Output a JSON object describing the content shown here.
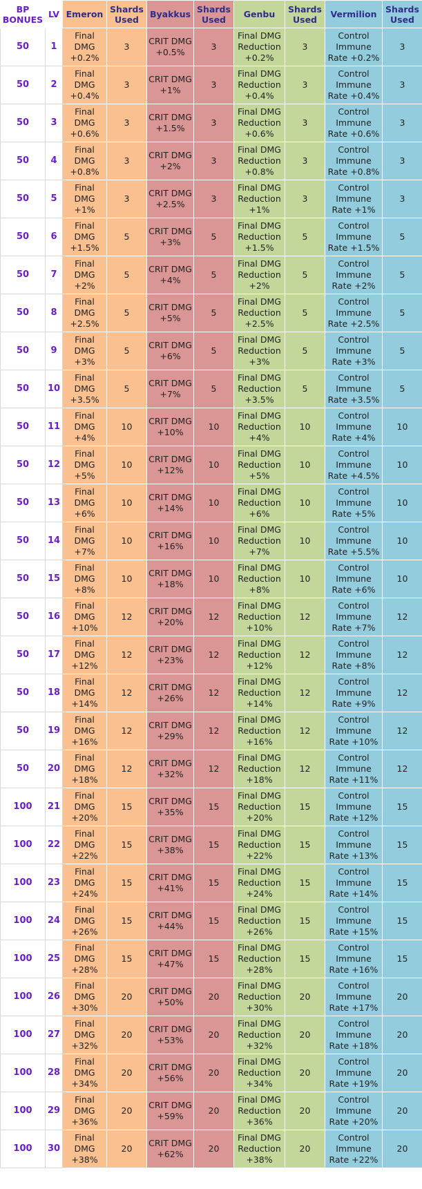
{
  "headers": [
    "BP BONUES",
    "LV",
    "Emeron",
    "Shards Used",
    "Byakkus",
    "Shards Used",
    "Genbu",
    "Shards Used",
    "Vermilion",
    "Shards Used"
  ],
  "colors": {
    "emeron": "#fac090",
    "byakkus": "#d99694",
    "genbu": "#c4d79b",
    "vermilion": "#93cddd",
    "accent_purple": "#6a1fc9",
    "header_text": "#2e2e8a"
  },
  "rows": [
    {
      "bp": "50",
      "lv": "1",
      "emeron": "Final DMG +0.2%",
      "s1": "3",
      "byakkus": "CRIT DMG +0.5%",
      "s2": "3",
      "genbu": "Final DMG Reduction +0.2%",
      "s3": "3",
      "vermilion": "Control Immune Rate +0.2%",
      "s4": "3"
    },
    {
      "bp": "50",
      "lv": "2",
      "emeron": "Final DMG +0.4%",
      "s1": "3",
      "byakkus": "CRIT DMG +1%",
      "s2": "3",
      "genbu": "Final DMG Reduction +0.4%",
      "s3": "3",
      "vermilion": "Control Immune Rate +0.4%",
      "s4": "3"
    },
    {
      "bp": "50",
      "lv": "3",
      "emeron": "Final DMG +0.6%",
      "s1": "3",
      "byakkus": "CRIT DMG +1.5%",
      "s2": "3",
      "genbu": "Final DMG Reduction +0.6%",
      "s3": "3",
      "vermilion": "Control Immune Rate +0.6%",
      "s4": "3"
    },
    {
      "bp": "50",
      "lv": "4",
      "emeron": "Final DMG +0.8%",
      "s1": "3",
      "byakkus": "CRIT DMG +2%",
      "s2": "3",
      "genbu": "Final DMG Reduction +0.8%",
      "s3": "3",
      "vermilion": "Control Immune Rate +0.8%",
      "s4": "3"
    },
    {
      "bp": "50",
      "lv": "5",
      "emeron": "Final DMG +1%",
      "s1": "3",
      "byakkus": "CRIT DMG +2.5%",
      "s2": "3",
      "genbu": "Final DMG Reduction +1%",
      "s3": "3",
      "vermilion": "Control Immune Rate +1%",
      "s4": "3"
    },
    {
      "bp": "50",
      "lv": "6",
      "emeron": "Final DMG +1.5%",
      "s1": "5",
      "byakkus": "CRIT DMG +3%",
      "s2": "5",
      "genbu": "Final DMG Reduction +1.5%",
      "s3": "5",
      "vermilion": "Control Immune Rate +1.5%",
      "s4": "5"
    },
    {
      "bp": "50",
      "lv": "7",
      "emeron": "Final DMG +2%",
      "s1": "5",
      "byakkus": "CRIT DMG +4%",
      "s2": "5",
      "genbu": "Final DMG Reduction +2%",
      "s3": "5",
      "vermilion": "Control Immune Rate +2%",
      "s4": "5"
    },
    {
      "bp": "50",
      "lv": "8",
      "emeron": "Final DMG +2.5%",
      "s1": "5",
      "byakkus": "CRIT DMG +5%",
      "s2": "5",
      "genbu": "Final DMG Reduction +2.5%",
      "s3": "5",
      "vermilion": "Control Immune Rate +2.5%",
      "s4": "5"
    },
    {
      "bp": "50",
      "lv": "9",
      "emeron": "Final DMG +3%",
      "s1": "5",
      "byakkus": "CRIT DMG +6%",
      "s2": "5",
      "genbu": "Final DMG Reduction +3%",
      "s3": "5",
      "vermilion": "Control Immune Rate +3%",
      "s4": "5"
    },
    {
      "bp": "50",
      "lv": "10",
      "emeron": "Final DMG +3.5%",
      "s1": "5",
      "byakkus": "CRIT DMG +7%",
      "s2": "5",
      "genbu": "Final DMG Reduction +3.5%",
      "s3": "5",
      "vermilion": "Control Immune Rate +3.5%",
      "s4": "5"
    },
    {
      "bp": "50",
      "lv": "11",
      "emeron": "Final DMG +4%",
      "s1": "10",
      "byakkus": "CRIT DMG +10%",
      "s2": "10",
      "genbu": "Final DMG Reduction +4%",
      "s3": "10",
      "vermilion": "Control Immune Rate +4%",
      "s4": "10"
    },
    {
      "bp": "50",
      "lv": "12",
      "emeron": "Final DMG +5%",
      "s1": "10",
      "byakkus": "CRIT DMG +12%",
      "s2": "10",
      "genbu": "Final DMG Reduction +5%",
      "s3": "10",
      "vermilion": "Control Immune Rate +4.5%",
      "s4": "10"
    },
    {
      "bp": "50",
      "lv": "13",
      "emeron": "Final DMG +6%",
      "s1": "10",
      "byakkus": "CRIT DMG +14%",
      "s2": "10",
      "genbu": "Final DMG Reduction +6%",
      "s3": "10",
      "vermilion": "Control Immune Rate +5%",
      "s4": "10"
    },
    {
      "bp": "50",
      "lv": "14",
      "emeron": "Final DMG +7%",
      "s1": "10",
      "byakkus": "CRIT DMG +16%",
      "s2": "10",
      "genbu": "Final DMG Reduction +7%",
      "s3": "10",
      "vermilion": "Control Immune Rate +5.5%",
      "s4": "10"
    },
    {
      "bp": "50",
      "lv": "15",
      "emeron": "Final DMG +8%",
      "s1": "10",
      "byakkus": "CRIT DMG +18%",
      "s2": "10",
      "genbu": "Final DMG Reduction +8%",
      "s3": "10",
      "vermilion": "Control Immune Rate +6%",
      "s4": "10"
    },
    {
      "bp": "50",
      "lv": "16",
      "emeron": "Final DMG +10%",
      "s1": "12",
      "byakkus": "CRIT DMG +20%",
      "s2": "12",
      "genbu": "Final DMG Reduction +10%",
      "s3": "12",
      "vermilion": "Control Immune Rate +7%",
      "s4": "12"
    },
    {
      "bp": "50",
      "lv": "17",
      "emeron": "Final DMG +12%",
      "s1": "12",
      "byakkus": "CRIT DMG +23%",
      "s2": "12",
      "genbu": "Final DMG Reduction +12%",
      "s3": "12",
      "vermilion": "Control Immune Rate +8%",
      "s4": "12"
    },
    {
      "bp": "50",
      "lv": "18",
      "emeron": "Final DMG +14%",
      "s1": "12",
      "byakkus": "CRIT DMG +26%",
      "s2": "12",
      "genbu": "Final DMG Reduction +14%",
      "s3": "12",
      "vermilion": "Control Immune Rate +9%",
      "s4": "12"
    },
    {
      "bp": "50",
      "lv": "19",
      "emeron": "Final DMG +16%",
      "s1": "12",
      "byakkus": "CRIT DMG +29%",
      "s2": "12",
      "genbu": "Final DMG Reduction +16%",
      "s3": "12",
      "vermilion": "Control Immune Rate +10%",
      "s4": "12"
    },
    {
      "bp": "50",
      "lv": "20",
      "emeron": "Final DMG +18%",
      "s1": "12",
      "byakkus": "CRIT DMG +32%",
      "s2": "12",
      "genbu": "Final DMG Reduction +18%",
      "s3": "12",
      "vermilion": "Control Immune Rate +11%",
      "s4": "12"
    },
    {
      "bp": "100",
      "lv": "21",
      "emeron": "Final DMG +20%",
      "s1": "15",
      "byakkus": "CRIT DMG +35%",
      "s2": "15",
      "genbu": "Final DMG Reduction +20%",
      "s3": "15",
      "vermilion": "Control Immune Rate +12%",
      "s4": "15"
    },
    {
      "bp": "100",
      "lv": "22",
      "emeron": "Final DMG +22%",
      "s1": "15",
      "byakkus": "CRIT DMG +38%",
      "s2": "15",
      "genbu": "Final DMG Reduction +22%",
      "s3": "15",
      "vermilion": "Control Immune Rate +13%",
      "s4": "15"
    },
    {
      "bp": "100",
      "lv": "23",
      "emeron": "Final DMG +24%",
      "s1": "15",
      "byakkus": "CRIT DMG +41%",
      "s2": "15",
      "genbu": "Final DMG Reduction +24%",
      "s3": "15",
      "vermilion": "Control Immune Rate +14%",
      "s4": "15"
    },
    {
      "bp": "100",
      "lv": "24",
      "emeron": "Final DMG +26%",
      "s1": "15",
      "byakkus": "CRIT DMG +44%",
      "s2": "15",
      "genbu": "Final DMG Reduction +26%",
      "s3": "15",
      "vermilion": "Control Immune Rate +15%",
      "s4": "15"
    },
    {
      "bp": "100",
      "lv": "25",
      "emeron": "Final DMG +28%",
      "s1": "15",
      "byakkus": "CRIT DMG +47%",
      "s2": "15",
      "genbu": "Final DMG Reduction +28%",
      "s3": "15",
      "vermilion": "Control Immune Rate +16%",
      "s4": "15"
    },
    {
      "bp": "100",
      "lv": "26",
      "emeron": "Final DMG +30%",
      "s1": "20",
      "byakkus": "CRIT DMG +50%",
      "s2": "20",
      "genbu": "Final DMG Reduction +30%",
      "s3": "20",
      "vermilion": "Control Immune Rate +17%",
      "s4": "20"
    },
    {
      "bp": "100",
      "lv": "27",
      "emeron": "Final DMG +32%",
      "s1": "20",
      "byakkus": "CRIT DMG +53%",
      "s2": "20",
      "genbu": "Final DMG Reduction +32%",
      "s3": "20",
      "vermilion": "Control Immune Rate +18%",
      "s4": "20"
    },
    {
      "bp": "100",
      "lv": "28",
      "emeron": "Final DMG +34%",
      "s1": "20",
      "byakkus": "CRIT DMG +56%",
      "s2": "20",
      "genbu": "Final DMG Reduction +34%",
      "s3": "20",
      "vermilion": "Control Immune Rate +19%",
      "s4": "20"
    },
    {
      "bp": "100",
      "lv": "29",
      "emeron": "Final DMG +36%",
      "s1": "20",
      "byakkus": "CRIT DMG +59%",
      "s2": "20",
      "genbu": "Final DMG Reduction +36%",
      "s3": "20",
      "vermilion": "Control Immune Rate +20%",
      "s4": "20"
    },
    {
      "bp": "100",
      "lv": "30",
      "emeron": "Final DMG +38%",
      "s1": "20",
      "byakkus": "CRIT DMG +62%",
      "s2": "20",
      "genbu": "Final DMG Reduction +38%",
      "s3": "20",
      "vermilion": "Control Immune Rate +22%",
      "s4": "20"
    }
  ]
}
